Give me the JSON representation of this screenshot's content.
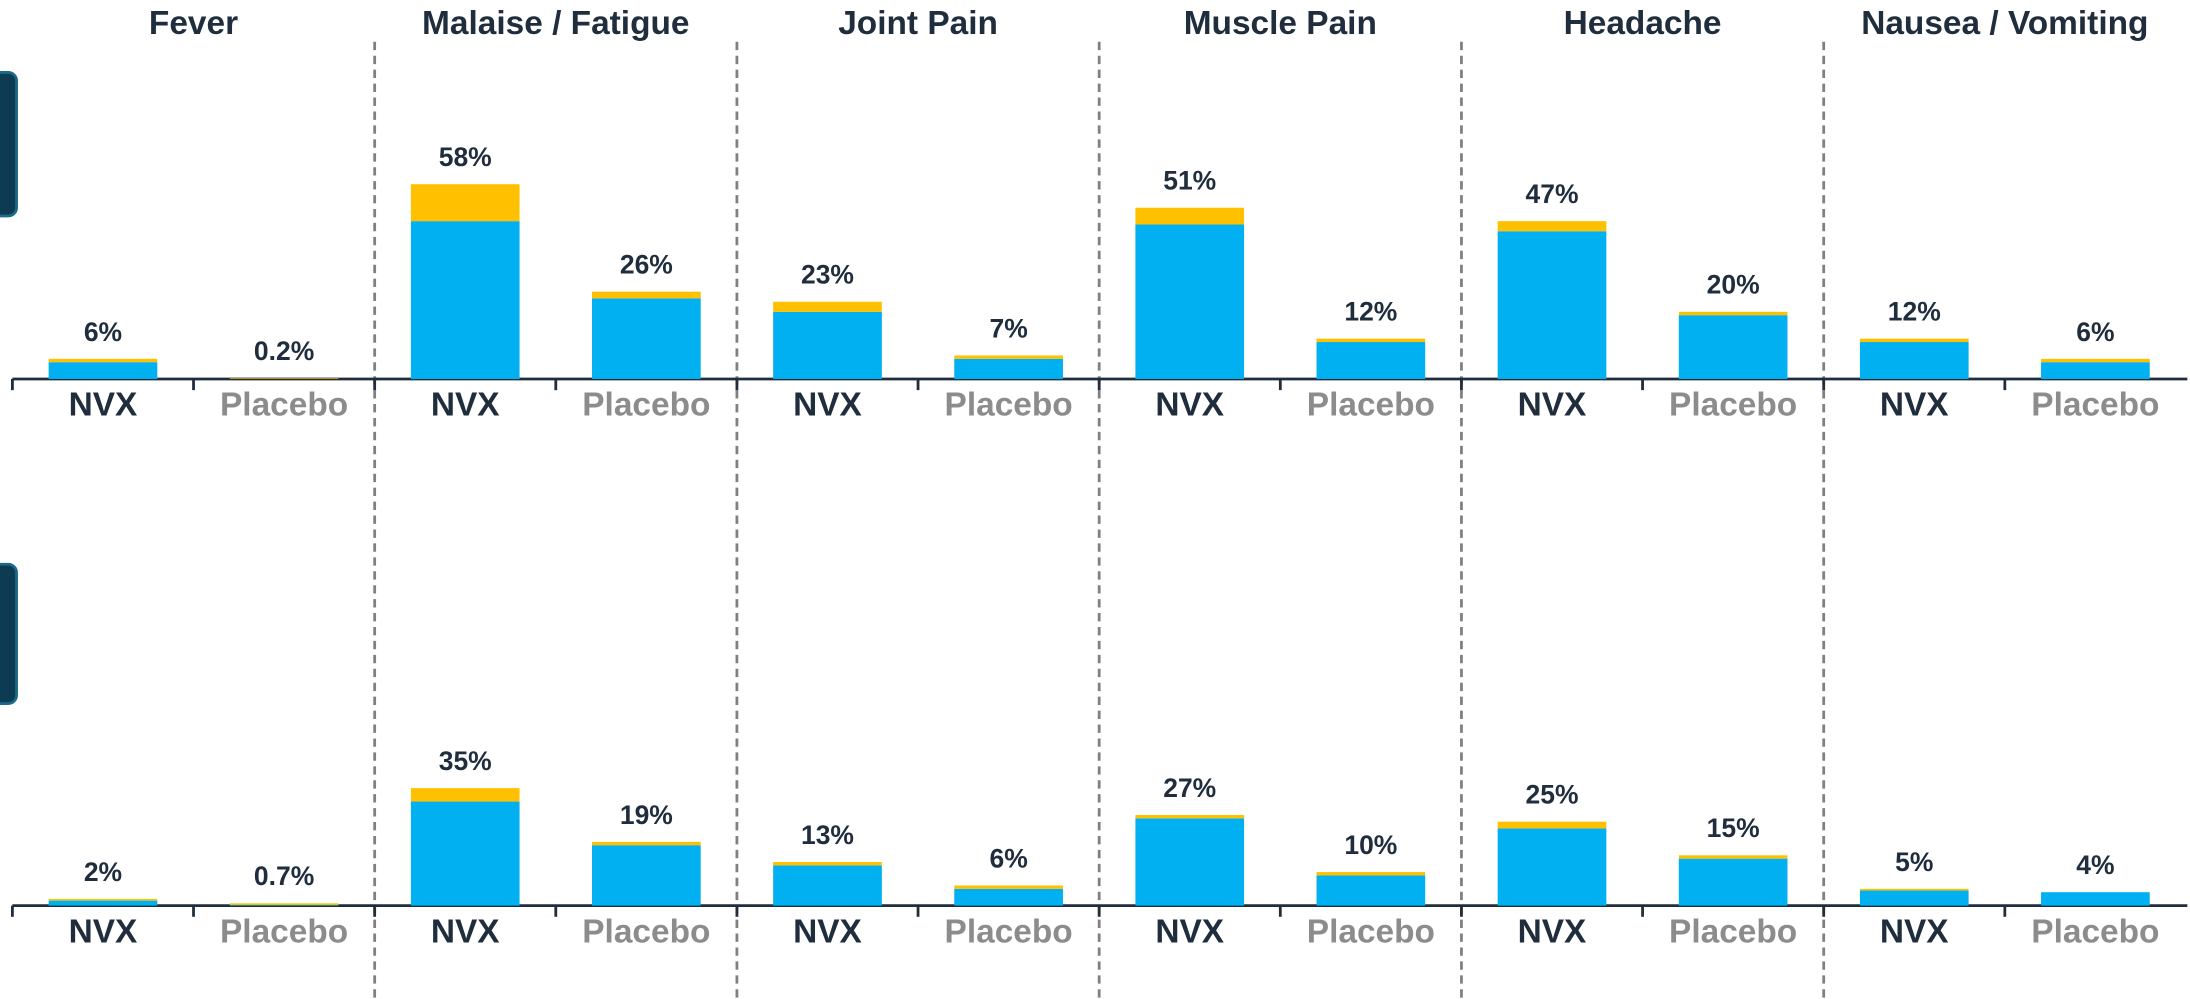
{
  "symptoms": [
    "Fever",
    "Malaise / Fatigue",
    "Joint Pain",
    "Muscle Pain",
    "Headache",
    "Nausea / Vomiting"
  ],
  "chart_data": [
    {
      "type": "bar",
      "stacked": true,
      "ylim": [
        0,
        100
      ],
      "categories": [
        "NVX",
        "Placebo",
        "NVX",
        "Placebo",
        "NVX",
        "Placebo",
        "NVX",
        "Placebo",
        "NVX",
        "Placebo",
        "NVX",
        "Placebo"
      ],
      "series": [
        {
          "color": "#00b0f0",
          "values": [
            5,
            0,
            47,
            24,
            20,
            6,
            46,
            11,
            44,
            19,
            11,
            5
          ]
        },
        {
          "color": "#ffc000",
          "values": [
            1,
            0.2,
            11,
            2,
            3,
            1,
            5,
            1,
            3,
            1,
            1,
            1
          ]
        }
      ],
      "value_labels": [
        "6%",
        "0.2%",
        "58%",
        "26%",
        "23%",
        "7%",
        "51%",
        "12%",
        "47%",
        "20%",
        "12%",
        "6%"
      ]
    },
    {
      "type": "bar",
      "stacked": true,
      "ylim": [
        0,
        100
      ],
      "categories": [
        "NVX",
        "Placebo",
        "NVX",
        "Placebo",
        "NVX",
        "Placebo",
        "NVX",
        "Placebo",
        "NVX",
        "Placebo",
        "NVX",
        "Placebo"
      ],
      "series": [
        {
          "color": "#00b0f0",
          "values": [
            1.5,
            0.2,
            31,
            18,
            12,
            5,
            26,
            9,
            23,
            14,
            4.5,
            4
          ]
        },
        {
          "color": "#ffc000",
          "values": [
            0.5,
            0.5,
            4,
            1,
            1,
            1,
            1,
            1,
            2,
            1,
            0.5,
            0
          ]
        }
      ],
      "value_labels": [
        "2%",
        "0.7%",
        "35%",
        "19%",
        "13%",
        "6%",
        "27%",
        "10%",
        "25%",
        "15%",
        "5%",
        "4%"
      ]
    }
  ]
}
